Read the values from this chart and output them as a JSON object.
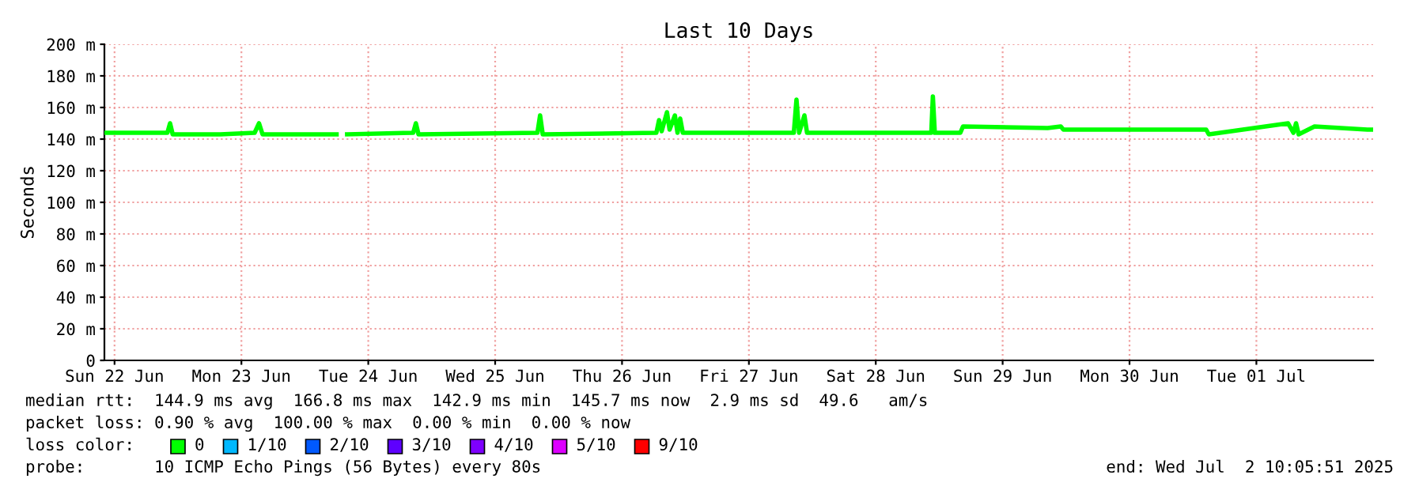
{
  "chart_data": {
    "type": "line",
    "title": "Last 10 Days",
    "ylabel": "Seconds",
    "x": [
      "2025-06-22T10:30",
      "2025-06-22T17:00",
      "2025-06-22T22:00",
      "2025-06-22T22:30",
      "2025-06-22T23:00",
      "2025-06-23T08:00",
      "2025-06-23T14:30",
      "2025-06-23T15:20",
      "2025-06-23T16:00",
      "2025-06-24T06:00",
      "2025-06-24T07:00",
      "2025-06-24T08:00",
      "2025-06-24T20:30",
      "2025-06-24T21:00",
      "2025-06-24T21:30",
      "2025-06-25T20:00",
      "2025-06-25T20:30",
      "2025-06-25T21:00",
      "2025-06-26T18:30",
      "2025-06-26T19:00",
      "2025-06-26T19:30",
      "2025-06-26T20:30",
      "2025-06-26T21:00",
      "2025-06-26T22:00",
      "2025-06-26T22:30",
      "2025-06-26T23:00",
      "2025-06-26T23:30",
      "2025-06-27T20:30",
      "2025-06-27T21:00",
      "2025-06-27T21:30",
      "2025-06-27T22:30",
      "2025-06-27T23:00",
      "2025-06-28T22:30",
      "2025-06-28T22:48",
      "2025-06-28T23:10",
      "2025-06-29T04:00",
      "2025-06-29T04:30",
      "2025-06-29T20:30",
      "2025-06-29T23:00",
      "2025-06-29T23:30",
      "2025-07-01T02:30",
      "2025-07-01T03:00",
      "2025-07-01T18:00",
      "2025-07-01T19:00",
      "2025-07-01T19:30",
      "2025-07-01T20:00",
      "2025-07-01T23:00",
      "2025-07-02T09:00",
      "2025-07-02T10:00"
    ],
    "series": [
      {
        "color": "#00ff00",
        "values": [
          144,
          144,
          144,
          150,
          143,
          143,
          144,
          150,
          143,
          143,
          null,
          143,
          144,
          150,
          143,
          144,
          155,
          143,
          144,
          152,
          145,
          157,
          146,
          155,
          144,
          153,
          144,
          144,
          165,
          144,
          155,
          144,
          144,
          167,
          144,
          144,
          148,
          147,
          148,
          146,
          146,
          143,
          150,
          144,
          150,
          143,
          148,
          146,
          146
        ]
      }
    ],
    "xlim": [
      "2025-06-22T10:05",
      "2025-07-02T10:05"
    ],
    "xticks": [
      {
        "value": "2025-06-22T12:00",
        "label": "Sun 22 Jun"
      },
      {
        "value": "2025-06-23T12:00",
        "label": "Mon 23 Jun"
      },
      {
        "value": "2025-06-24T12:00",
        "label": "Tue 24 Jun"
      },
      {
        "value": "2025-06-25T12:00",
        "label": "Wed 25 Jun"
      },
      {
        "value": "2025-06-26T12:00",
        "label": "Thu 26 Jun"
      },
      {
        "value": "2025-06-27T12:00",
        "label": "Fri 27 Jun"
      },
      {
        "value": "2025-06-28T12:00",
        "label": "Sat 28 Jun"
      },
      {
        "value": "2025-06-29T12:00",
        "label": "Sun 29 Jun"
      },
      {
        "value": "2025-06-30T12:00",
        "label": "Mon 30 Jun"
      },
      {
        "value": "2025-07-01T12:00",
        "label": "Tue 01 Jul"
      }
    ],
    "ylim": [
      0,
      200
    ],
    "yticks": [
      0,
      {
        "value": 20,
        "label": "20 m"
      },
      {
        "value": 40,
        "label": "40 m"
      },
      {
        "value": 60,
        "label": "60 m"
      },
      {
        "value": 80,
        "label": "80 m"
      },
      {
        "value": 100,
        "label": "100 m"
      },
      {
        "value": 120,
        "label": "120 m"
      },
      {
        "value": 140,
        "label": "140 m"
      },
      {
        "value": 160,
        "label": "160 m"
      },
      {
        "value": 180,
        "label": "180 m"
      },
      {
        "value": 200,
        "label": "200 m"
      }
    ],
    "grid": true,
    "line_style": "solid",
    "marker": "none",
    "annotations": [
      "median rtt:  144.9 ms avg  166.8 ms max  142.9 ms min  145.7 ms now  2.9 ms sd  49.6   am/s",
      "packet loss: 0.90 % avg  100.00 % max  0.00 % min  0.00 % now",
      "loss color:",
      "0",
      "1/10",
      "2/10",
      "3/10",
      "4/10",
      "5/10",
      "9/10",
      "probe:       10 ICMP Echo Pings (56 Bytes) every 80s",
      "end: Wed Jul  2 10:05:51 2025"
    ]
  }
}
